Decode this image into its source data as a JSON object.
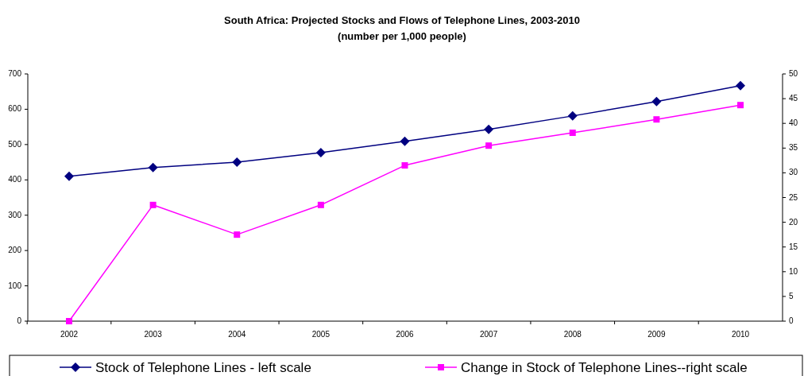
{
  "chart_data": {
    "type": "line",
    "title": "South Africa: Projected Stocks and Flows of Telephone Lines, 2003-2010",
    "subtitle": "(number per 1,000 people)",
    "categories": [
      "2002",
      "2003",
      "2004",
      "2005",
      "2006",
      "2007",
      "2008",
      "2009",
      "2010"
    ],
    "series": [
      {
        "name": "Stock of Telephone Lines - left scale",
        "color": "#000080",
        "marker": "diamond",
        "values": [
          410,
          435,
          450,
          477,
          509,
          543,
          581,
          622,
          667
        ]
      },
      {
        "name": "Change in Stock of Telephone Lines--right scale",
        "color": "#ff00ff",
        "marker": "square",
        "axis": "y2",
        "values": [
          0,
          23.5,
          17.5,
          23.5,
          31.5,
          35.5,
          38.1,
          40.8,
          43.7
        ]
      }
    ],
    "ylim": [
      0,
      700
    ],
    "yticks": [
      0,
      100,
      200,
      300,
      400,
      500,
      600,
      700
    ],
    "y2lim": [
      0,
      50
    ],
    "y2ticks": [
      0,
      5,
      10,
      15,
      20,
      25,
      30,
      35,
      40,
      45,
      50
    ],
    "grid": false,
    "legend": "bottom"
  }
}
